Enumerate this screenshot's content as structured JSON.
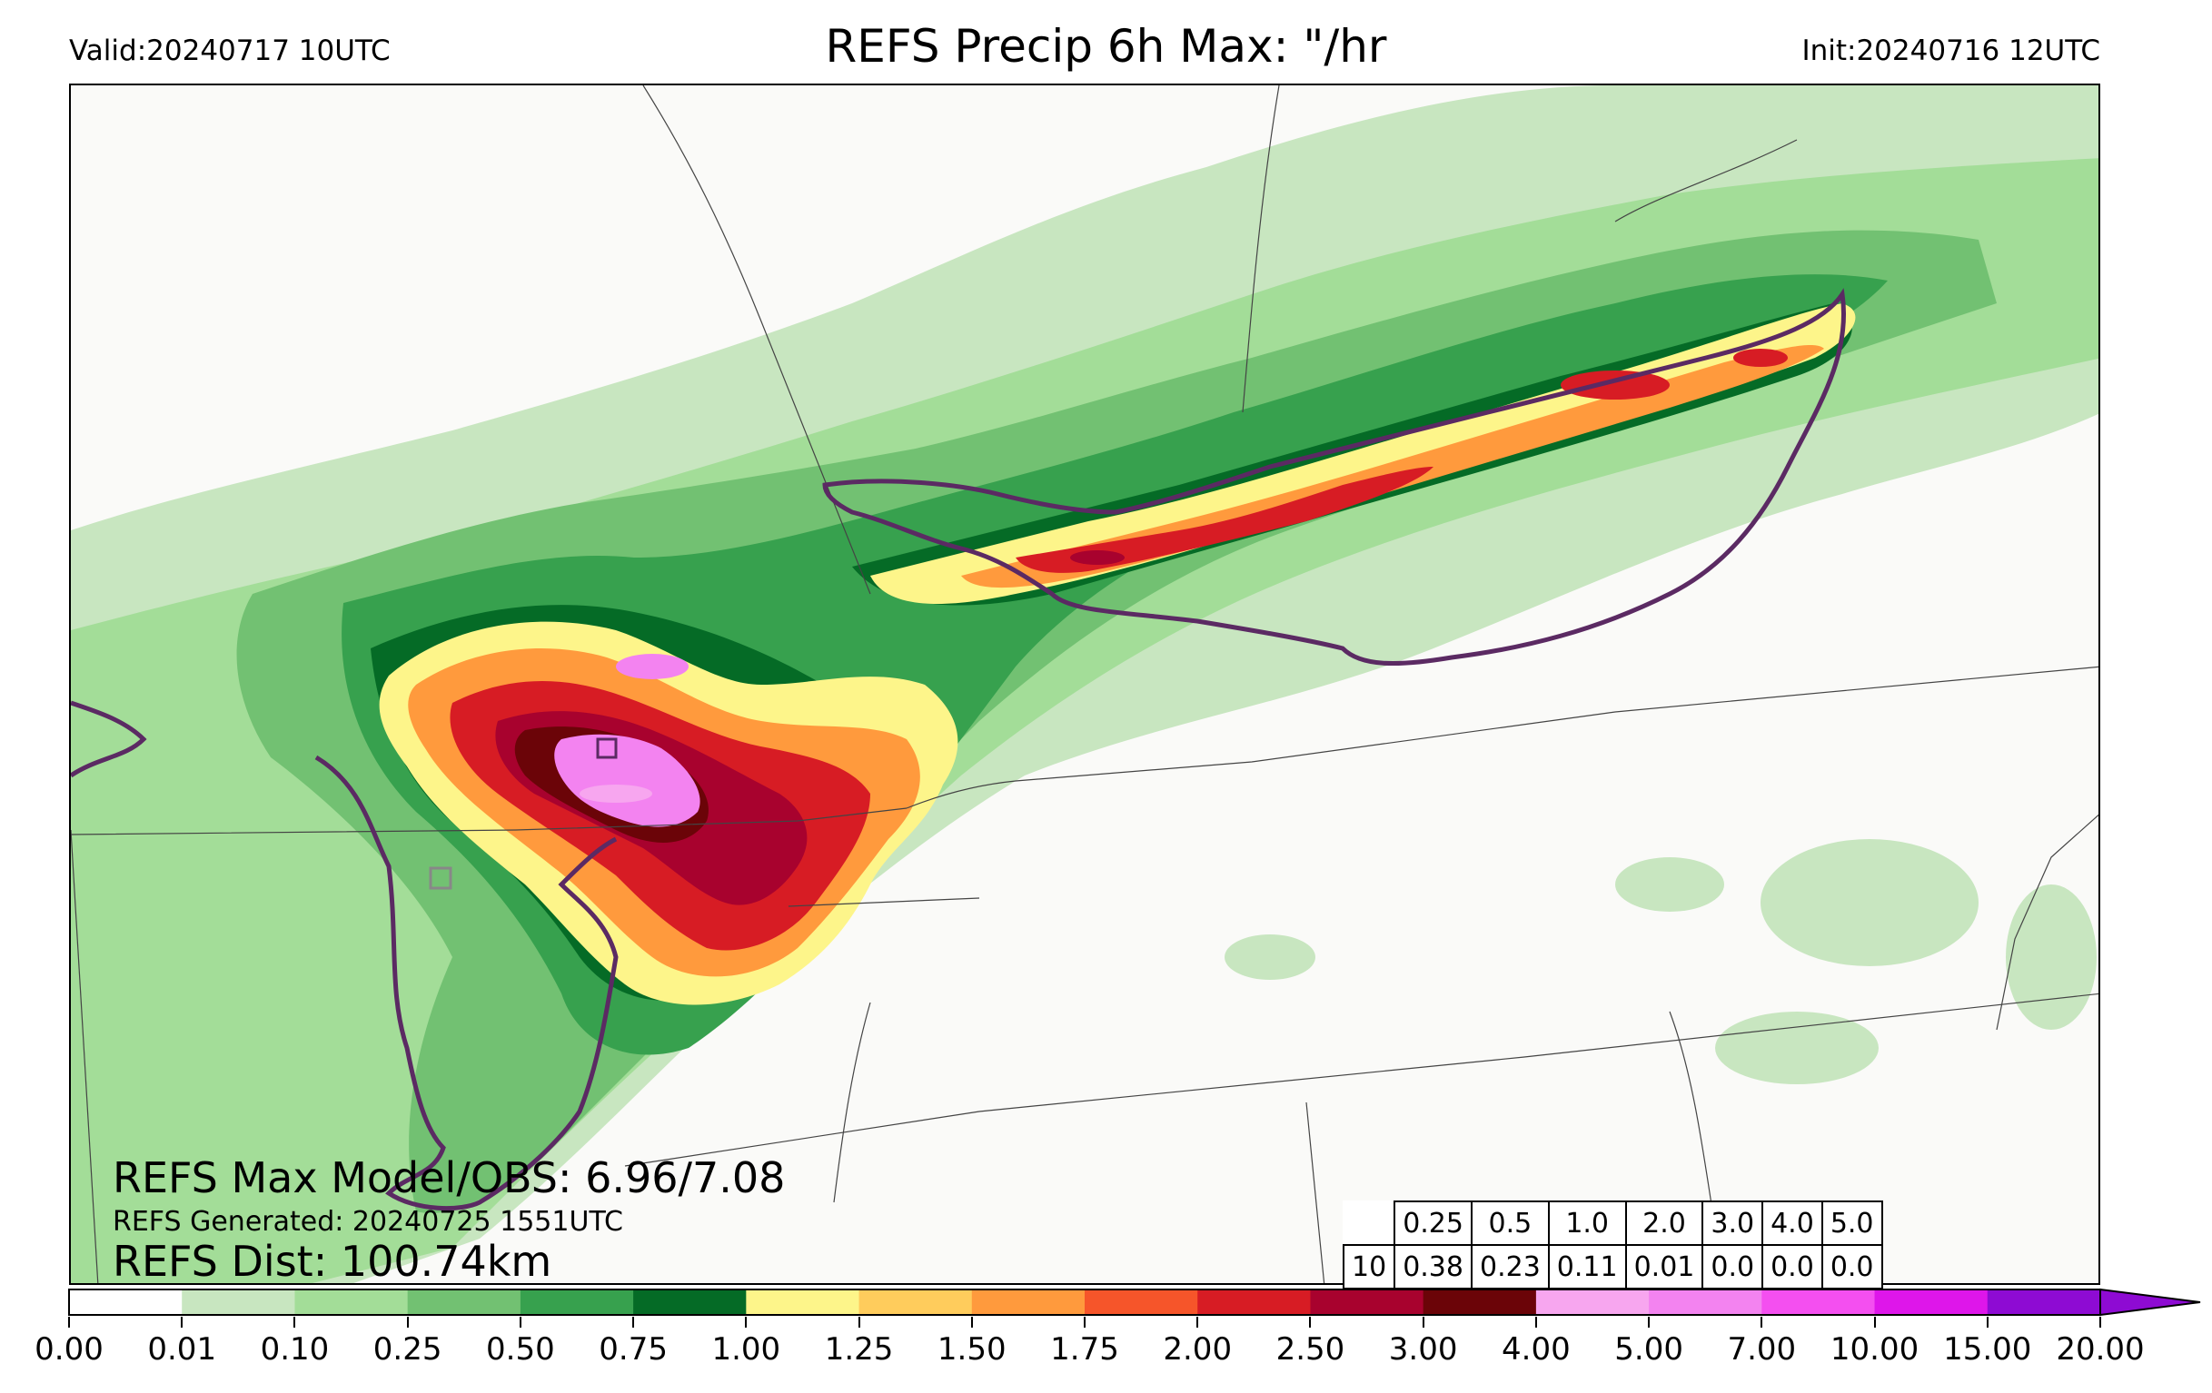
{
  "header": {
    "valid": "Valid:20240717 10UTC",
    "title": "REFS Precip 6h Max: \"/hr",
    "init": "Init:20240716 12UTC"
  },
  "stats": {
    "max_model_obs": "REFS Max Model/OBS: 6.96/7.08",
    "generated": "REFS Generated: 20240725 1551UTC",
    "dist": "REFS Dist: 100.74km"
  },
  "threshold_table": {
    "thresholds": [
      "0.25",
      "0.5",
      "1.0",
      "2.0",
      "3.0",
      "4.0",
      "5.0"
    ],
    "row_label": "10",
    "values": [
      "0.38",
      "0.23",
      "0.11",
      "0.01",
      "0.0",
      "0.0",
      "0.0"
    ]
  },
  "colorbar": {
    "ticks": [
      "0.00",
      "0.01",
      "0.10",
      "0.25",
      "0.50",
      "0.75",
      "1.00",
      "1.25",
      "1.50",
      "1.75",
      "2.00",
      "2.50",
      "3.00",
      "4.00",
      "5.00",
      "7.00",
      "10.00",
      "15.00",
      "20.00"
    ],
    "colors": [
      "#ffffff",
      "#c8e6c0",
      "#a3dd98",
      "#72c172",
      "#37a14e",
      "#056b26",
      "#fdf58a",
      "#ffcc5c",
      "#ff9a3d",
      "#f6552a",
      "#d71c24",
      "#a8022e",
      "#6b0408",
      "#f7a6ef",
      "#f383f0",
      "#f44ff0",
      "#de16ea",
      "#8e0bd3"
    ]
  },
  "map_colors": {
    "background": "#fafaf8",
    "light_green": "#c8e6c0",
    "green": "#a3dd98",
    "mid_green": "#72c172",
    "dark_green": "#37a14e",
    "deep_green": "#056b26",
    "yellow": "#fdf58a",
    "orange": "#ff9a3d",
    "red": "#d71c24",
    "maroon": "#a8022e",
    "dark_maroon": "#6b0408",
    "pink": "#f383f0",
    "contour": "#5b2a63"
  }
}
